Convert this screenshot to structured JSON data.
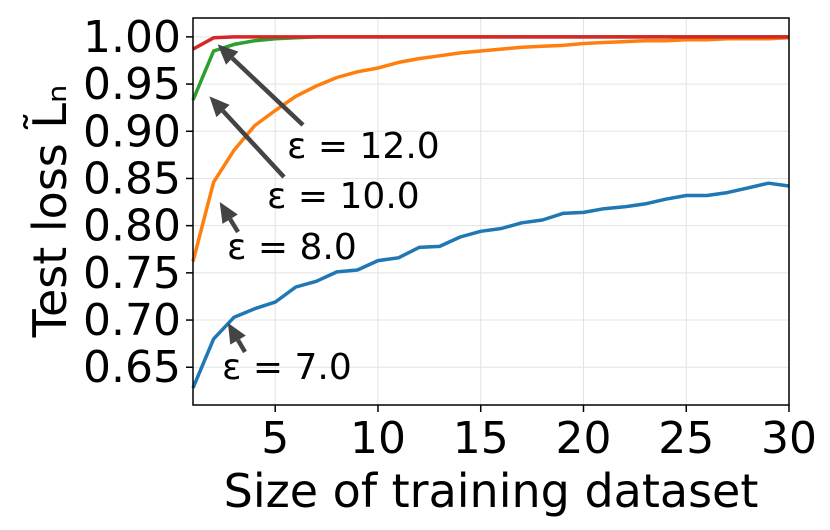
{
  "chart_data": {
    "type": "line",
    "xlabel": "Size of training dataset",
    "ylabel": "Test loss L̃ₙ",
    "xlim": [
      1,
      30
    ],
    "ylim": [
      0.61,
      1.02
    ],
    "xticks": [
      5,
      10,
      15,
      20,
      25,
      30
    ],
    "yticks": [
      0.65,
      0.7,
      0.75,
      0.8,
      0.85,
      0.9,
      0.95,
      1.0
    ],
    "xtick_labels": [
      "5",
      "10",
      "15",
      "20",
      "25",
      "30"
    ],
    "ytick_labels": [
      "0.65",
      "0.70",
      "0.75",
      "0.80",
      "0.85",
      "0.90",
      "0.95",
      "1.00"
    ],
    "grid": true,
    "x": [
      1,
      2,
      3,
      4,
      5,
      6,
      7,
      8,
      9,
      10,
      11,
      12,
      13,
      14,
      15,
      16,
      17,
      18,
      19,
      20,
      21,
      22,
      23,
      24,
      25,
      26,
      27,
      28,
      29,
      30
    ],
    "series": [
      {
        "color": "#1f77b4",
        "values": [
          0.628,
          0.68,
          0.703,
          0.712,
          0.719,
          0.735,
          0.741,
          0.751,
          0.753,
          0.763,
          0.766,
          0.777,
          0.778,
          0.788,
          0.794,
          0.797,
          0.803,
          0.806,
          0.813,
          0.814,
          0.818,
          0.82,
          0.823,
          0.828,
          0.832,
          0.832,
          0.835,
          0.84,
          0.845,
          0.842
        ]
      },
      {
        "color": "#ff7f0e",
        "values": [
          0.762,
          0.846,
          0.88,
          0.906,
          0.922,
          0.937,
          0.948,
          0.957,
          0.963,
          0.967,
          0.973,
          0.977,
          0.98,
          0.983,
          0.985,
          0.987,
          0.989,
          0.99,
          0.991,
          0.993,
          0.994,
          0.995,
          0.996,
          0.996,
          0.997,
          0.997,
          0.998,
          0.998,
          0.998,
          0.999
        ]
      },
      {
        "color": "#2ca02c",
        "values": [
          0.933,
          0.985,
          0.992,
          0.996,
          0.998,
          0.999,
          1.0,
          1.0,
          1.0,
          1.0,
          1.0,
          1.0,
          1.0,
          1.0,
          1.0,
          1.0,
          1.0,
          1.0,
          1.0,
          1.0,
          1.0,
          1.0,
          1.0,
          1.0,
          1.0,
          1.0,
          1.0,
          1.0,
          1.0,
          1.0
        ]
      },
      {
        "color": "#d62728",
        "values": [
          0.987,
          0.999,
          1.0,
          1.0,
          1.0,
          1.0,
          1.0,
          1.0,
          1.0,
          1.0,
          1.0,
          1.0,
          1.0,
          1.0,
          1.0,
          1.0,
          1.0,
          1.0,
          1.0,
          1.0,
          1.0,
          1.0,
          1.0,
          1.0,
          1.0,
          1.0,
          1.0,
          1.0,
          1.0,
          1.0
        ]
      }
    ],
    "annotations": [
      {
        "text": "ε = 12.0",
        "points_to": [
          2.2,
          0.992
        ]
      },
      {
        "text": "ε = 10.0",
        "points_to": [
          1.8,
          0.937
        ]
      },
      {
        "text": "ε = 8.0",
        "points_to": [
          2.3,
          0.825
        ]
      },
      {
        "text": "ε = 7.0",
        "points_to": [
          2.7,
          0.697
        ]
      }
    ]
  }
}
